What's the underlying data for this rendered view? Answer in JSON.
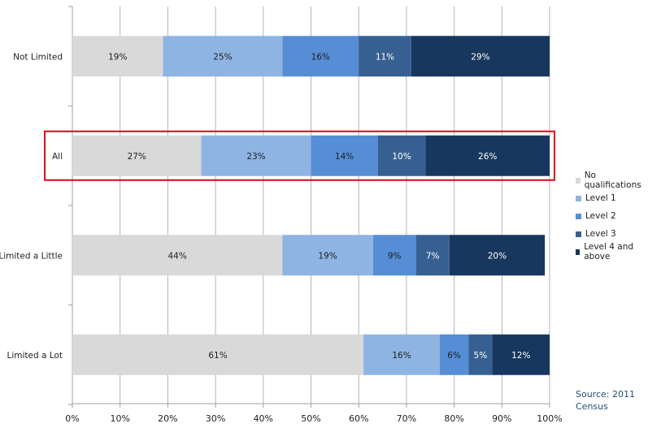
{
  "chart_data": {
    "type": "bar",
    "orientation": "horizontal",
    "stacked": true,
    "categories": [
      "Not Limited",
      "All",
      "Limited a Little",
      "Limited a Lot"
    ],
    "series": [
      {
        "name": "No qualifications",
        "color": "#d9d9d9",
        "values": [
          19,
          27,
          44,
          61
        ],
        "labels": [
          "19%",
          "27%",
          "44%",
          "61%"
        ],
        "label_color": "#1f1f1f"
      },
      {
        "name": "Level 1",
        "color": "#8eb4e3",
        "values": [
          25,
          23,
          19,
          16
        ],
        "labels": [
          "25%",
          "23%",
          "19%",
          "16%"
        ],
        "label_color": "#1f1f1f"
      },
      {
        "name": "Level 2",
        "color": "#558ed5",
        "values": [
          16,
          14,
          9,
          6
        ],
        "labels": [
          "16%",
          "14%",
          "9%",
          "6%"
        ],
        "label_color": "#1f1f1f"
      },
      {
        "name": "Level 3",
        "color": "#376092",
        "values": [
          11,
          10,
          7,
          5
        ],
        "labels": [
          "11%",
          "10%",
          "7%",
          "5%"
        ],
        "label_color": "#ffffff"
      },
      {
        "name": "Level 4 and above",
        "color": "#17375e",
        "values": [
          29,
          26,
          20,
          12
        ],
        "labels": [
          "29%",
          "26%",
          "20%",
          "12%"
        ],
        "label_color": "#ffffff"
      }
    ],
    "xlim": [
      0,
      100
    ],
    "x_ticks": [
      "0%",
      "10%",
      "20%",
      "30%",
      "40%",
      "50%",
      "60%",
      "70%",
      "80%",
      "90%",
      "100%"
    ],
    "grid": true,
    "legend_position": "right",
    "highlighted_category": "All",
    "highlight_color": "#e3001b",
    "source": "Source: 2011 Census"
  }
}
